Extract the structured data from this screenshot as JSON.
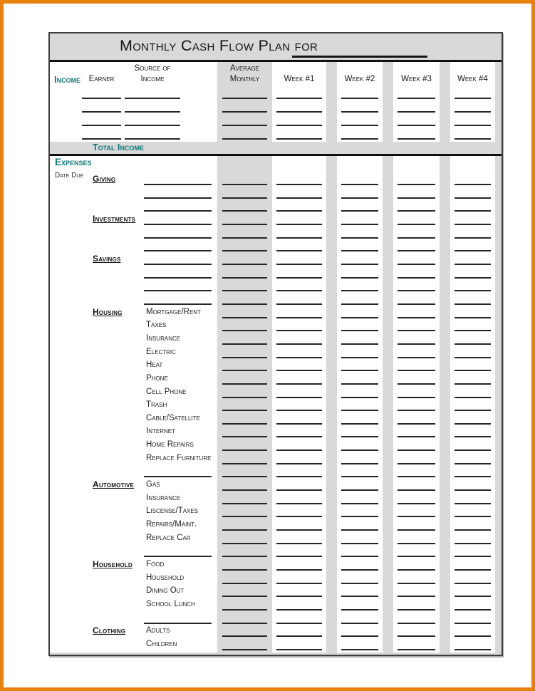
{
  "page_title": {
    "text": "Monthly Cash Flow Plan for"
  },
  "income": {
    "section_label": "Income",
    "columns": {
      "earner": "Earner",
      "source_of_income": [
        "Source of",
        "Income"
      ],
      "average_monthly": [
        "Average",
        "Monthly"
      ],
      "weeks": [
        "Week #1",
        "Week #2",
        "Week #3",
        "Week #4"
      ]
    },
    "blank_row_count": 4,
    "total_label": "Total Income"
  },
  "expenses": {
    "section_label": "Expenses",
    "date_due_label": "Date Due",
    "sections": [
      {
        "name": "Giving",
        "items": [
          "",
          "",
          ""
        ],
        "gap_after": false
      },
      {
        "name": "Investments",
        "items": [
          "",
          "",
          ""
        ],
        "gap_after": false
      },
      {
        "name": "Savings",
        "items": [
          "",
          "",
          "",
          ""
        ],
        "gap_after": false
      },
      {
        "name": "Housing",
        "items": [
          "Mortgage/Rent",
          "Taxes",
          "Insurance",
          "Electric",
          "Heat",
          "Phone",
          "Cell Phone",
          "Trash",
          "Cable/Satellite",
          "Internet",
          "Home Repairs",
          "Replace Furniture"
        ],
        "gap_after": true
      },
      {
        "name": "Automotive",
        "items": [
          "Gas",
          "Insurance",
          "Liscense/Taxes",
          "Repairs/Maint.",
          "Replace Car"
        ],
        "gap_after": true
      },
      {
        "name": "Household",
        "items": [
          "Food",
          "Household",
          "Dining Out",
          "School Lunch"
        ],
        "gap_after": true
      },
      {
        "name": "Clothing",
        "items": [
          "Adults",
          "Children"
        ],
        "gap_after": false
      }
    ]
  },
  "colors": {
    "accent_teal": "#127A77",
    "frame_orange": "#E8820F",
    "page_gray": "#D9D9D9",
    "line_dark": "#262626",
    "page_border": "#3D3D3D"
  }
}
